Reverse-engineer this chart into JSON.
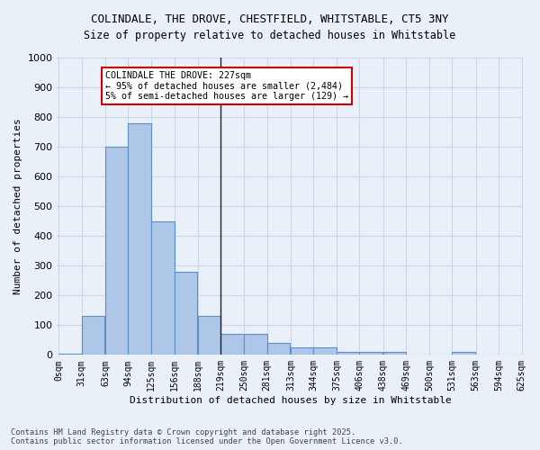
{
  "title_line1": "COLINDALE, THE DROVE, CHESTFIELD, WHITSTABLE, CT5 3NY",
  "title_line2": "Size of property relative to detached houses in Whitstable",
  "xlabel": "Distribution of detached houses by size in Whitstable",
  "ylabel": "Number of detached properties",
  "bar_values": [
    5,
    130,
    700,
    780,
    450,
    280,
    130,
    70,
    70,
    40,
    25,
    25,
    10,
    10,
    10,
    0,
    0,
    10,
    0,
    0
  ],
  "bar_left_edges": [
    0,
    31,
    63,
    94,
    125,
    156,
    188,
    219,
    250,
    281,
    313,
    344,
    375,
    406,
    438,
    469,
    500,
    531,
    563,
    594
  ],
  "x_tick_labels": [
    "0sqm",
    "31sqm",
    "63sqm",
    "94sqm",
    "125sqm",
    "156sqm",
    "188sqm",
    "219sqm",
    "250sqm",
    "281sqm",
    "313sqm",
    "344sqm",
    "375sqm",
    "406sqm",
    "438sqm",
    "469sqm",
    "500sqm",
    "531sqm",
    "563sqm",
    "594sqm",
    "625sqm"
  ],
  "bar_color": "#aec6e8",
  "bar_edge_color": "#5b8fc9",
  "grid_color": "#c8d8ea",
  "background_color": "#eaf0f8",
  "annotation_text": "COLINDALE THE DROVE: 227sqm\n← 95% of detached houses are smaller (2,484)\n5% of semi-detached houses are larger (129) →",
  "annotation_box_facecolor": "#ffffff",
  "annotation_box_edgecolor": "#cc0000",
  "vline_x": 219,
  "bin_width": 31,
  "ylim": [
    0,
    1000
  ],
  "yticks": [
    0,
    100,
    200,
    300,
    400,
    500,
    600,
    700,
    800,
    900,
    1000
  ],
  "footnote": "Contains HM Land Registry data © Crown copyright and database right 2025.\nContains public sector information licensed under the Open Government Licence v3.0."
}
